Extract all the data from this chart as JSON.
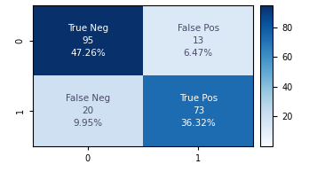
{
  "matrix": [
    [
      95,
      13
    ],
    [
      20,
      73
    ]
  ],
  "labels": [
    [
      "True Neg\n95\n47.26%",
      "False Pos\n13\n6.47%"
    ],
    [
      "False Neg\n20\n9.95%",
      "True Pos\n73\n36.32%"
    ]
  ],
  "text_colors": [
    [
      "white",
      "#4a4a6a"
    ],
    [
      "#4a4a6a",
      "white"
    ]
  ],
  "x_tick_labels": [
    "0",
    "1"
  ],
  "y_tick_labels": [
    "0",
    "1"
  ],
  "colorbar_ticks": [
    20,
    40,
    60,
    80
  ],
  "cmap": "Blues",
  "vmin": 0,
  "vmax": 95,
  "label_fontsize": 7.5,
  "tick_fontsize": 7
}
